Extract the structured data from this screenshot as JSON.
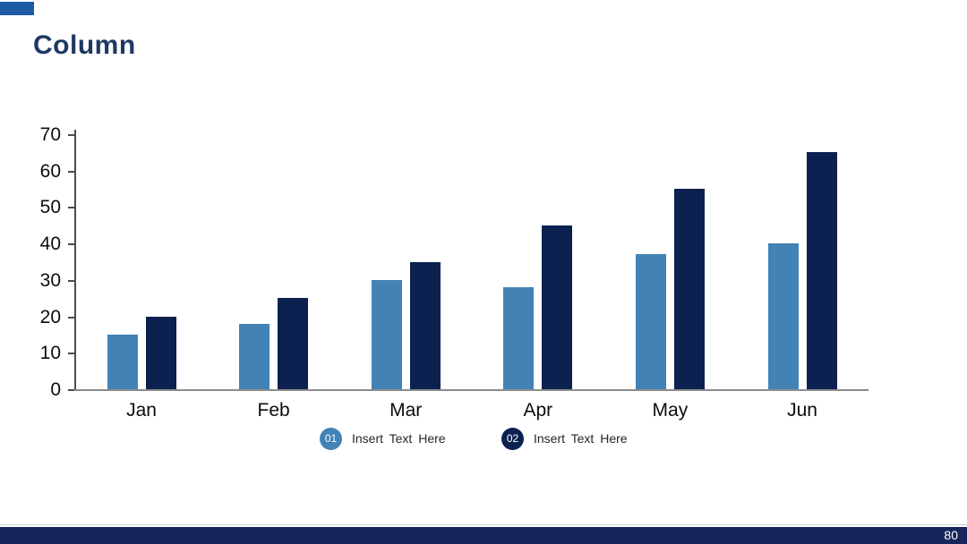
{
  "slide": {
    "title": "Column",
    "page_number": "80"
  },
  "colors": {
    "accent_rect": "#1d5ba5",
    "title": "#1f3864",
    "series1": "#4282b4",
    "series2": "#0c2150",
    "footer_bar": "#16265c"
  },
  "legend": {
    "items": [
      {
        "badge": "01",
        "label": "Insert Text Here",
        "color": "#4282b4"
      },
      {
        "badge": "02",
        "label": "Insert Text Here",
        "color": "#0c2150"
      }
    ]
  },
  "chart_data": {
    "type": "bar",
    "title": "Column",
    "categories": [
      "Jan",
      "Feb",
      "Mar",
      "Apr",
      "May",
      "Jun"
    ],
    "series": [
      {
        "name": "01 Insert Text Here",
        "color": "#4282b4",
        "values": [
          15,
          18,
          30,
          28,
          37,
          40
        ]
      },
      {
        "name": "02 Insert Text Here",
        "color": "#0c2150",
        "values": [
          20,
          25,
          35,
          45,
          55,
          65
        ]
      }
    ],
    "xlabel": "",
    "ylabel": "",
    "ylim": [
      0,
      70
    ],
    "ytick_step": 10,
    "grid": false,
    "legend_position": "bottom"
  }
}
